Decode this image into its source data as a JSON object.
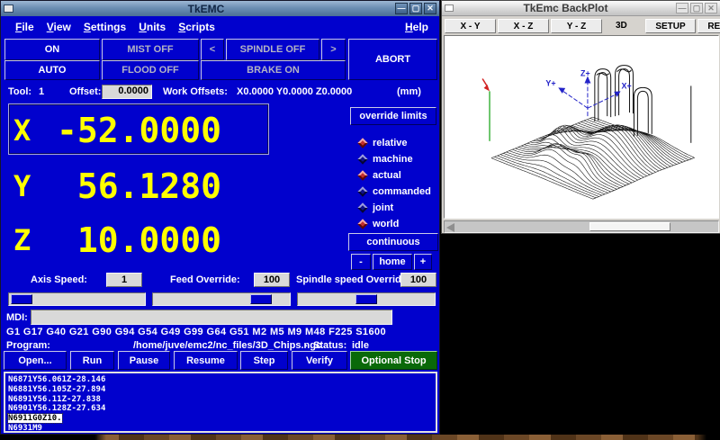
{
  "main_window": {
    "title": "TkEMC",
    "controls": {
      "minimize": "—",
      "maximize": "▢",
      "close": "✕"
    },
    "menu": {
      "items": [
        "File",
        "View",
        "Settings",
        "Units",
        "Scripts"
      ],
      "help": "Help"
    },
    "machine_buttons": {
      "on": "ON",
      "auto": "AUTO",
      "mist": "MIST OFF",
      "flood": "FLOOD OFF",
      "spindle_minus": "<",
      "spindle": "SPINDLE OFF",
      "spindle_plus": ">",
      "brake": "BRAKE ON",
      "abort": "ABORT"
    },
    "tool_row": {
      "tool_label": "Tool:",
      "tool_value": "1",
      "offset_label": "Offset:",
      "offset_value": "0.0000",
      "work_offsets_label": "Work Offsets:",
      "work_offsets_value": "X0.0000 Y0.0000 Z0.0000",
      "units": "(mm)"
    },
    "dro": {
      "axes": [
        {
          "letter": "X",
          "value": "-52.0000",
          "selected": true
        },
        {
          "letter": "Y",
          "value": "56.1280",
          "selected": false
        },
        {
          "letter": "Z",
          "value": "10.0000",
          "selected": false
        }
      ]
    },
    "right_panel": {
      "override_limits": "override limits",
      "radios": [
        {
          "label": "relative",
          "selected": true
        },
        {
          "label": "machine",
          "selected": false
        },
        {
          "label": "actual",
          "selected": true
        },
        {
          "label": "commanded",
          "selected": false
        },
        {
          "label": "joint",
          "selected": false
        },
        {
          "label": "world",
          "selected": true
        }
      ],
      "jog_mode": "continuous",
      "jog_minus": "-",
      "home": "home",
      "jog_plus": "+"
    },
    "speed_row": {
      "axis_speed_label": "Axis Speed:",
      "axis_speed_value": "1",
      "feed_override_label": "Feed Override:",
      "feed_override_value": "100",
      "spindle_override_label": "Spindle speed Override:",
      "spindle_override_value": "100"
    },
    "mdi": {
      "label": "MDI:",
      "value": ""
    },
    "gcodes": "G1 G17 G40 G21 G90 G94 G54 G49 G99 G64 G51 M2 M5 M9 M48 F225 S1600",
    "program_row": {
      "label": "Program:",
      "path": "/home/juve/emc2/nc_files/3D_Chips.ngc",
      "dash": "-",
      "status_label": "Status:",
      "status_value": "idle"
    },
    "action_buttons": [
      "Open...",
      "Run",
      "Pause",
      "Resume",
      "Step",
      "Verify"
    ],
    "optional_stop": "Optional Stop",
    "code_lines": [
      {
        "text": "N6871Y56.061Z-28.146",
        "highlight": false
      },
      {
        "text": "N6881Y56.105Z-27.894",
        "highlight": false
      },
      {
        "text": "N6891Y56.11Z-27.838",
        "highlight": false
      },
      {
        "text": "N6901Y56.128Z-27.634",
        "highlight": false
      },
      {
        "text": "N6911G0Z10.",
        "highlight": true
      },
      {
        "text": "N6931M9",
        "highlight": false
      }
    ]
  },
  "backplot_window": {
    "title": "TkEmc BackPlot",
    "controls": {
      "minimize": "—",
      "maximize": "▢",
      "close": "✕"
    },
    "view_buttons": [
      "X - Y",
      "X - Z",
      "Y - Z"
    ],
    "view_3d_label": "3D",
    "setup_button": "SETUP",
    "reset_button": "RESET",
    "axis_labels": {
      "z": "Z+",
      "y": "Y+",
      "x": "X+"
    }
  },
  "colors": {
    "main_bg": "#0101cd",
    "dro_yellow": "#ffff00",
    "optional_stop_green": "#096909",
    "radio_selected": "#c22f2f",
    "radio_unselected": "#10108a",
    "axis_arrow_blue": "#2323c8",
    "tool_marker_red": "#d22222",
    "tool_line_green": "#3db43d"
  }
}
